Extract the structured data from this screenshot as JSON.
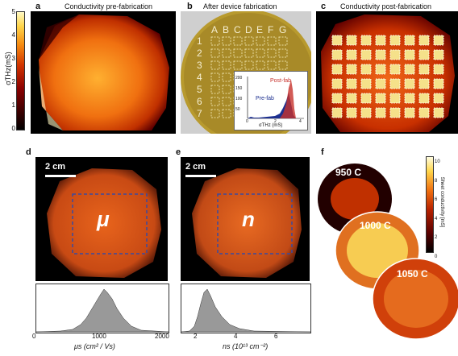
{
  "panels": {
    "a": {
      "letter": "a",
      "title": "Conductivity pre-fabrication"
    },
    "b": {
      "letter": "b",
      "title": "After device fabrication",
      "columns": [
        "A",
        "B",
        "C",
        "D",
        "E",
        "F",
        "G"
      ],
      "rows": [
        "1",
        "2",
        "3",
        "4",
        "5",
        "6",
        "7"
      ],
      "inset": {
        "legend_post": "Post-fab",
        "legend_pre": "Pre-fab",
        "yticks": [
          "200",
          "150",
          "100",
          "50",
          "0"
        ],
        "xticks": [
          "0",
          "2",
          "4"
        ],
        "xlabel": "σTHz (mS)"
      }
    },
    "c": {
      "letter": "c",
      "title": "Conductivity post-fabrication"
    },
    "d": {
      "letter": "d",
      "scale": "2 cm",
      "symbol": "μ",
      "xticks": [
        "0",
        "1000",
        "2000"
      ],
      "xlabel": "μs (cm² / Vs)"
    },
    "e": {
      "letter": "e",
      "scale": "2 cm",
      "symbol": "n",
      "xticks": [
        "2",
        "4",
        "6"
      ],
      "xlabel": "ns (10¹³ cm⁻²)"
    },
    "f": {
      "letter": "f",
      "wafers": [
        "950 C",
        "1000 C",
        "1050 C"
      ],
      "cbar_ticks": [
        "10",
        "8",
        "6",
        "4",
        "2",
        "0"
      ],
      "cbar_label": "Sheet conductivity [mS]"
    }
  },
  "colorbar_a": {
    "label": "σTHz(mS)",
    "ticks": [
      "5",
      "4",
      "3",
      "2",
      "1",
      "0"
    ]
  }
}
